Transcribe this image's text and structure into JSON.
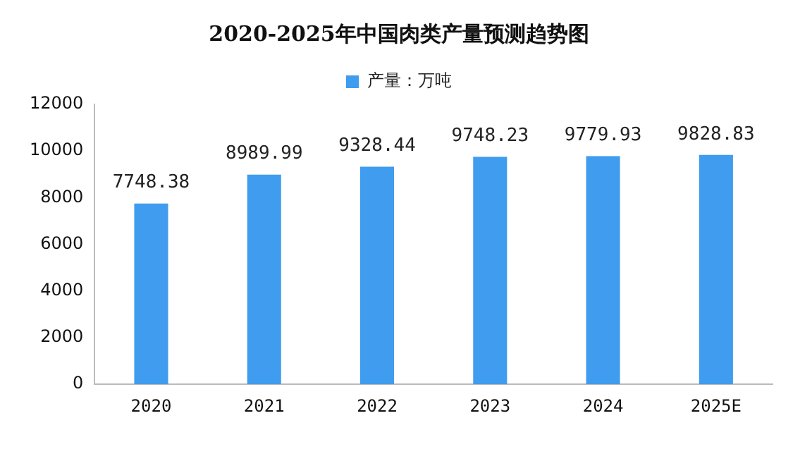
{
  "chart_data": {
    "type": "bar",
    "title": "2020-2025年中国肉类产量预测趋势图",
    "categories": [
      "2020",
      "2021",
      "2022",
      "2023",
      "2024",
      "2025E"
    ],
    "series": [
      {
        "name": "产量：万吨",
        "color": "#3f9cee",
        "values": [
          7748.38,
          8989.99,
          9328.44,
          9748.23,
          9779.93,
          9828.83
        ]
      }
    ],
    "ylim": [
      0,
      12000
    ],
    "yticks": [
      0,
      2000,
      4000,
      6000,
      8000,
      10000,
      12000
    ],
    "grid": false,
    "legend": "top",
    "data_labels": true
  }
}
